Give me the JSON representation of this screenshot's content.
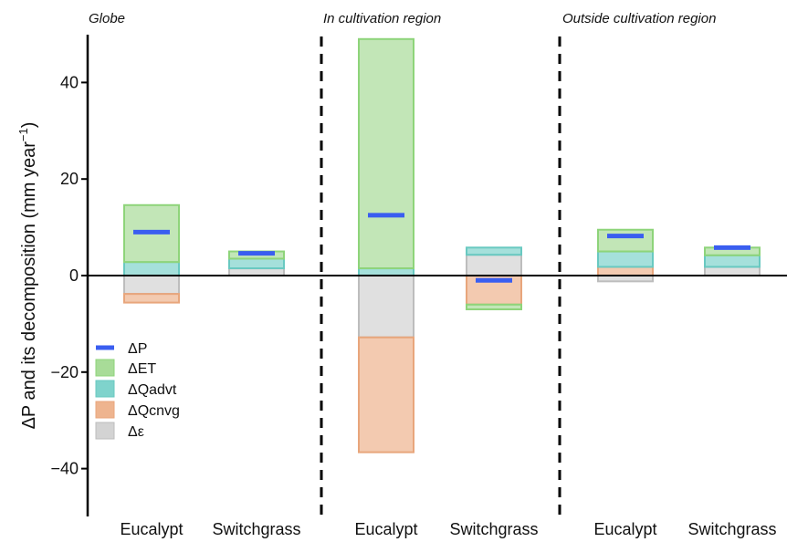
{
  "chart_data": {
    "type": "bar",
    "ylabel": "ΔP and its decomposition (mm year",
    "ylabel_superscript": "−1",
    "ylabel_close": ")",
    "ylim": [
      -50,
      50
    ],
    "yticks": [
      {
        "value": 40,
        "label": "40"
      },
      {
        "value": 20,
        "label": "20"
      },
      {
        "value": 0,
        "label": "0"
      },
      {
        "value": -20,
        "label": "−20"
      },
      {
        "value": -40,
        "label": "−40"
      }
    ],
    "panels": [
      {
        "title": "Globe",
        "categories": [
          "Eucalypt",
          "Switchgrass"
        ]
      },
      {
        "title": "In cultivation region",
        "categories": [
          "Eucalypt",
          "Switchgrass"
        ]
      },
      {
        "title": "Outside cultivation region",
        "categories": [
          "Eucalypt",
          "Switchgrass"
        ]
      }
    ],
    "legend_position": "left",
    "legend": [
      {
        "key": "dP",
        "label": "ΔP",
        "color": "#3a5ef0"
      },
      {
        "key": "dET",
        "label": "ΔET",
        "color": "#a8dc98"
      },
      {
        "key": "dQadvt",
        "label": "ΔQadvt",
        "color": "#7fd3cc"
      },
      {
        "key": "dQcnvg",
        "label": "ΔQcnvg",
        "color": "#eeb48f"
      },
      {
        "key": "deps",
        "label": "Δε",
        "color": "#cfcfcf"
      }
    ],
    "colors": {
      "dP": "#3a5ef0",
      "dET_fill": "#a8dc98",
      "dET_stroke": "#8ed47a",
      "dQadvt_fill": "#7fd3cc",
      "dQadvt_stroke": "#69c9c1",
      "dQcnvg_fill": "#eeb48f",
      "dQcnvg_stroke": "#e8a67c",
      "deps_fill": "#d3d3d3",
      "deps_stroke": "#bdbdbd"
    },
    "groups": [
      {
        "panel": 0,
        "category": "Eucalypt",
        "dP": 9.0,
        "segments": [
          {
            "comp": "dQadvt",
            "from": 0,
            "to": 2.8
          },
          {
            "comp": "dET",
            "from": 2.8,
            "to": 14.6
          },
          {
            "comp": "deps",
            "from": 0,
            "to": -3.8
          },
          {
            "comp": "dQcnvg",
            "from": -3.8,
            "to": -5.6
          }
        ]
      },
      {
        "panel": 0,
        "category": "Switchgrass",
        "dP": 4.6,
        "segments": [
          {
            "comp": "deps",
            "from": 0,
            "to": 1.5
          },
          {
            "comp": "dQadvt",
            "from": 1.5,
            "to": 3.5
          },
          {
            "comp": "dET",
            "from": 3.5,
            "to": 5.0
          }
        ]
      },
      {
        "panel": 1,
        "category": "Eucalypt",
        "dP": 12.5,
        "segments": [
          {
            "comp": "dQadvt",
            "from": 0,
            "to": 1.5
          },
          {
            "comp": "dET",
            "from": 1.5,
            "to": 49.0
          },
          {
            "comp": "deps",
            "from": 0,
            "to": -12.8
          },
          {
            "comp": "dQcnvg",
            "from": -12.8,
            "to": -36.6
          }
        ]
      },
      {
        "panel": 1,
        "category": "Switchgrass",
        "dP": -1.0,
        "segments": [
          {
            "comp": "deps",
            "from": 0,
            "to": 4.3
          },
          {
            "comp": "dQadvt",
            "from": 4.3,
            "to": 5.8
          },
          {
            "comp": "dQcnvg",
            "from": 0,
            "to": -6.0
          },
          {
            "comp": "dET",
            "from": -6.0,
            "to": -7.0
          }
        ]
      },
      {
        "panel": 2,
        "category": "Eucalypt",
        "dP": 8.2,
        "segments": [
          {
            "comp": "dQcnvg",
            "from": 0,
            "to": 1.8
          },
          {
            "comp": "dQadvt",
            "from": 1.8,
            "to": 5.0
          },
          {
            "comp": "dET",
            "from": 5.0,
            "to": 9.5
          },
          {
            "comp": "deps",
            "from": 0,
            "to": -1.2
          }
        ]
      },
      {
        "panel": 2,
        "category": "Switchgrass",
        "dP": 5.8,
        "segments": [
          {
            "comp": "deps",
            "from": 0,
            "to": 1.8
          },
          {
            "comp": "dQadvt",
            "from": 1.8,
            "to": 4.2
          },
          {
            "comp": "dET",
            "from": 4.2,
            "to": 5.8
          }
        ]
      }
    ]
  }
}
